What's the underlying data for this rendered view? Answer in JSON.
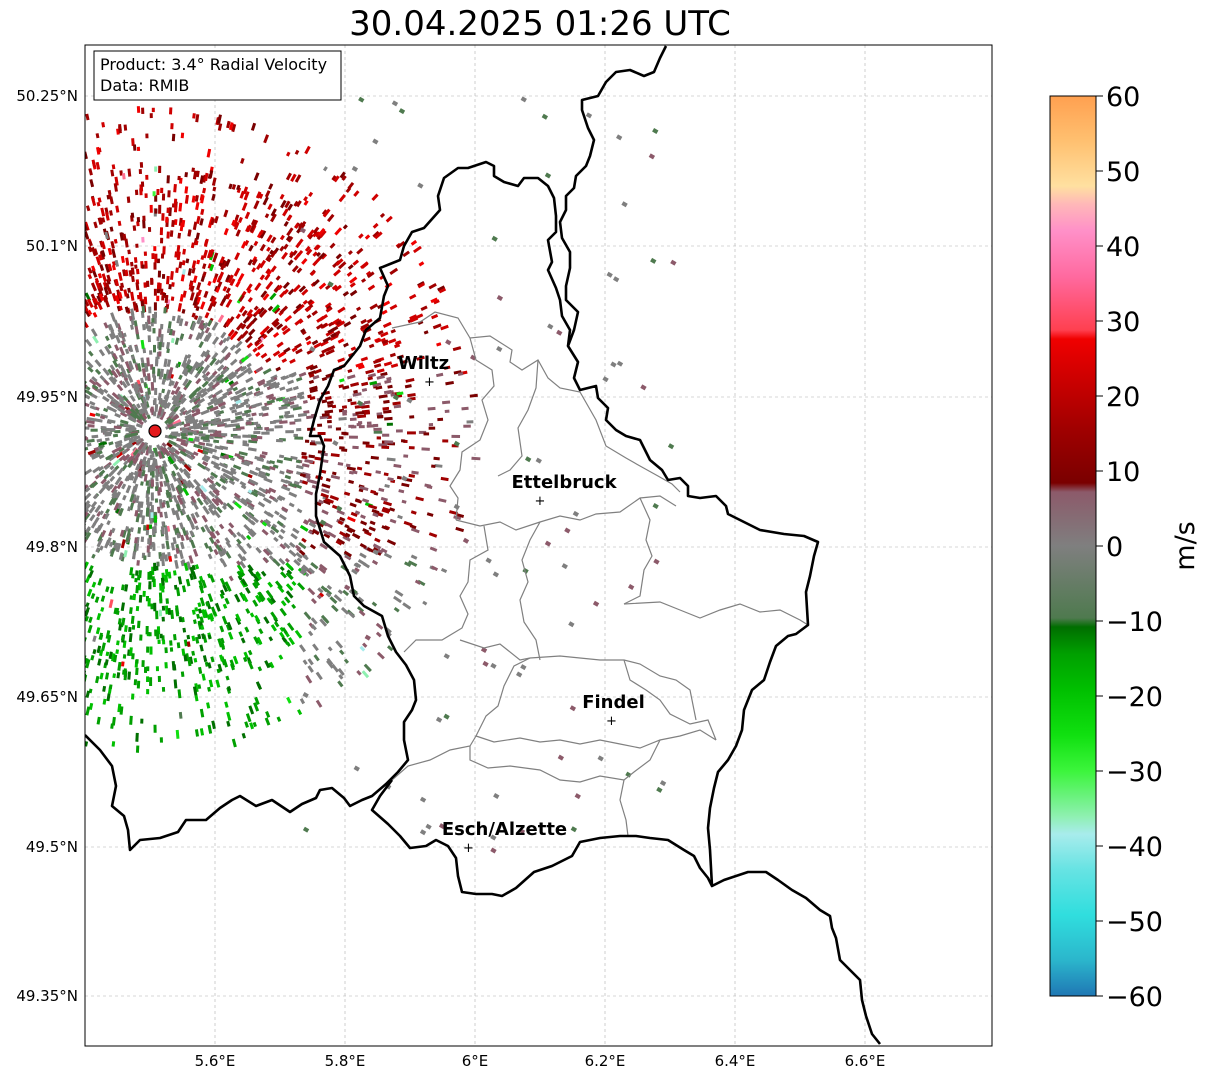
{
  "title": "30.04.2025 01:26 UTC",
  "info": {
    "product": "Product: 3.4° Radial Velocity",
    "data": "Data: RMIB"
  },
  "lat_ticks": [
    "50.25°N",
    "50.1°N",
    "49.95°N",
    "49.8°N",
    "49.65°N",
    "49.5°N",
    "49.35°N"
  ],
  "lon_ticks": [
    "5.6°E",
    "5.8°E",
    "6°E",
    "6.2°E",
    "6.4°E",
    "6.6°E"
  ],
  "cities": [
    {
      "name": "Wiltz",
      "lon": 5.93,
      "lat": 49.966
    },
    {
      "name": "Ettelbruck",
      "lon": 6.1,
      "lat": 49.847
    },
    {
      "name": "Findel",
      "lon": 6.21,
      "lat": 49.627
    },
    {
      "name": "Esch/Alzette",
      "lon": 5.99,
      "lat": 49.5
    }
  ],
  "radar_site": {
    "lon": 5.505,
    "lat": 49.915
  },
  "colorbar": {
    "label": "m/s",
    "ticks": [
      "60",
      "50",
      "40",
      "30",
      "20",
      "10",
      "0",
      "−10",
      "−20",
      "−30",
      "−40",
      "−50",
      "−60"
    ],
    "min": -60,
    "max": 60,
    "colors": {
      "-60": "#1f77b4",
      "-55": "#2bb6cc",
      "-50": "#30dede",
      "-45": "#66e3e3",
      "-40": "#a8ecec",
      "-35": "#8ef0b0",
      "-30": "#3cf53c",
      "-25": "#10e010",
      "-20": "#00c000",
      "-15": "#00a000",
      "-10": "#007000",
      "-5": "#4f7a4f",
      "0": "#7f7f7f",
      "5": "#8c5a6a",
      "10": "#7a0000",
      "15": "#a00000",
      "20": "#d00000",
      "25": "#f00000",
      "30": "#ff5060",
      "35": "#ff7090",
      "40": "#ff90c8",
      "45": "#ffb8b8",
      "50": "#ffe0a0",
      "55": "#ffc070",
      "60": "#ffa050"
    }
  }
}
